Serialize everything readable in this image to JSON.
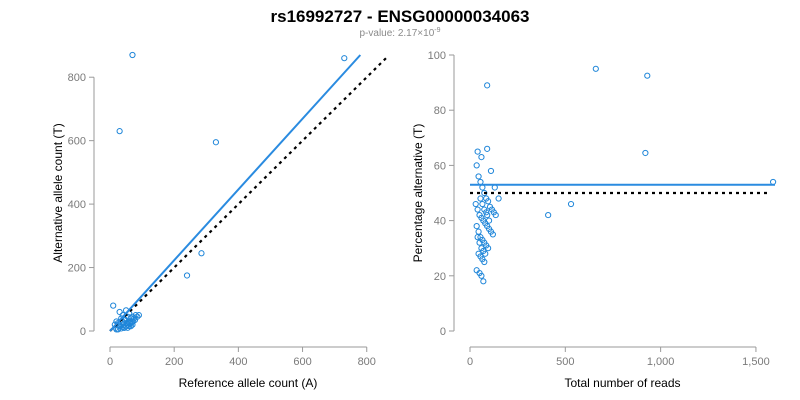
{
  "title": "rs16992727 - ENSG00000034063",
  "subtitle_prefix": "p-value: 2.17×10",
  "subtitle_exponent": "-9",
  "colors": {
    "point": "#1f86d9",
    "fit": "#2a8be0",
    "reference": "#000000"
  },
  "chart_data": [
    {
      "type": "scatter",
      "title": "",
      "xlabel": "Reference allele count (A)",
      "ylabel": "Alternative allele count (T)",
      "xlim": [
        0,
        860
      ],
      "ylim": [
        0,
        870
      ],
      "xticks": [
        0,
        200,
        400,
        600,
        800
      ],
      "xtick_labels": [
        "0",
        "200",
        "400",
        "600",
        "800"
      ],
      "yticks": [
        0,
        200,
        400,
        600,
        800
      ],
      "ytick_labels": [
        "0",
        "200",
        "400",
        "600",
        "800"
      ],
      "grid": false,
      "fit_line": {
        "x": [
          0,
          780
        ],
        "y": [
          0,
          870
        ]
      },
      "reference_line": {
        "x": [
          0,
          860
        ],
        "y": [
          0,
          860
        ]
      },
      "points": {
        "x": [
          70,
          30,
          330,
          730,
          285,
          240,
          10,
          30,
          50,
          40,
          60,
          70,
          80,
          90,
          20,
          35,
          45,
          55,
          65,
          75,
          85,
          25,
          15,
          38,
          48,
          58,
          68,
          78,
          28,
          42,
          52,
          62,
          72,
          18,
          33,
          44,
          56,
          66,
          35,
          25,
          45,
          30,
          50,
          40,
          20,
          60,
          70,
          55,
          65,
          40
        ],
        "y": [
          870,
          630,
          595,
          860,
          245,
          175,
          80,
          60,
          65,
          50,
          55,
          45,
          50,
          50,
          30,
          40,
          35,
          45,
          40,
          40,
          45,
          25,
          20,
          30,
          35,
          30,
          30,
          35,
          15,
          20,
          25,
          25,
          30,
          10,
          15,
          10,
          20,
          25,
          8,
          5,
          10,
          20,
          15,
          12,
          5,
          15,
          20,
          10,
          15,
          28
        ]
      }
    },
    {
      "type": "scatter",
      "title": "",
      "xlabel": "Total number of reads",
      "ylabel": "Percentage alternative (T)",
      "xlim": [
        0,
        1600
      ],
      "ylim": [
        0,
        100
      ],
      "xticks": [
        0,
        500,
        1000,
        1500
      ],
      "xtick_labels": [
        "0",
        "500",
        "1,000",
        "1,500"
      ],
      "yticks": [
        0,
        20,
        40,
        60,
        80,
        100
      ],
      "ytick_labels": [
        "0",
        "20",
        "40",
        "60",
        "80",
        "100"
      ],
      "grid": false,
      "fit_line": {
        "x": [
          0,
          1600
        ],
        "y": [
          53,
          53
        ]
      },
      "reference_line": {
        "x": [
          0,
          1560
        ],
        "y": [
          50,
          50
        ]
      },
      "points": {
        "x": [
          660,
          930,
          90,
          920,
          1590,
          410,
          530,
          40,
          60,
          90,
          110,
          130,
          150,
          35,
          45,
          55,
          65,
          75,
          85,
          95,
          105,
          115,
          125,
          135,
          30,
          40,
          50,
          60,
          70,
          80,
          90,
          100,
          110,
          120,
          35,
          45,
          55,
          65,
          75,
          85,
          95,
          40,
          50,
          60,
          70,
          80,
          45,
          55,
          65,
          75,
          35,
          50,
          60,
          70,
          90,
          100,
          55,
          65,
          75,
          85
        ],
        "y": [
          95,
          92.5,
          89,
          64.5,
          54,
          42,
          46,
          65,
          63,
          66,
          58,
          52,
          48,
          60,
          56,
          54,
          52,
          50,
          48,
          47,
          45,
          44,
          43,
          42,
          46,
          44,
          42,
          41,
          40,
          39,
          38,
          37,
          36,
          35,
          38,
          36,
          34,
          33,
          32,
          31,
          30,
          34,
          32,
          30,
          29,
          28,
          28,
          27,
          26,
          25,
          22,
          21,
          20,
          18,
          42,
          40,
          48,
          46,
          44,
          43
        ]
      }
    }
  ]
}
